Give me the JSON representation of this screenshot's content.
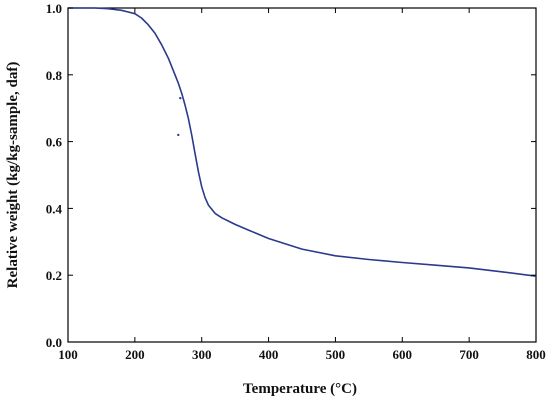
{
  "chart_data": {
    "type": "line",
    "title": "",
    "xlabel": "Temperature (°C)",
    "ylabel": "Relative weight (kg/kg-sample, daf)",
    "xlim": [
      100,
      800
    ],
    "ylim": [
      0.0,
      1.0
    ],
    "x_ticks": [
      100,
      200,
      300,
      400,
      500,
      600,
      700,
      800
    ],
    "y_ticks": [
      0.0,
      0.2,
      0.4,
      0.6,
      0.8,
      1.0
    ],
    "x_tick_labels": [
      "100",
      "200",
      "300",
      "400",
      "500",
      "600",
      "700",
      "800"
    ],
    "y_tick_labels": [
      "0.0",
      "0.2",
      "0.4",
      "0.6",
      "0.8",
      "1.0"
    ],
    "grid": false,
    "legend": "none",
    "series": [
      {
        "color": "#2b3a8c",
        "x": [
          100,
          120,
          140,
          160,
          180,
          200,
          210,
          220,
          230,
          240,
          250,
          260,
          265,
          270,
          275,
          280,
          285,
          290,
          295,
          300,
          305,
          310,
          320,
          330,
          340,
          350,
          370,
          400,
          450,
          500,
          550,
          600,
          650,
          700,
          750,
          800
        ],
        "y": [
          1.0,
          1.0,
          1.0,
          0.998,
          0.993,
          0.983,
          0.97,
          0.95,
          0.925,
          0.89,
          0.85,
          0.8,
          0.775,
          0.745,
          0.71,
          0.67,
          0.62,
          0.565,
          0.51,
          0.465,
          0.432,
          0.41,
          0.385,
          0.372,
          0.362,
          0.352,
          0.335,
          0.31,
          0.278,
          0.258,
          0.247,
          0.238,
          0.23,
          0.222,
          0.21,
          0.197
        ]
      }
    ],
    "stray_points": [
      {
        "x": 268,
        "y": 0.73
      },
      {
        "x": 265,
        "y": 0.62
      }
    ]
  }
}
